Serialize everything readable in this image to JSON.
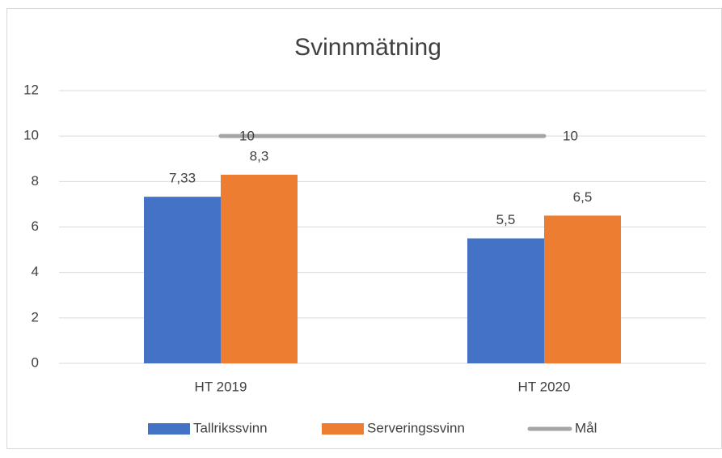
{
  "chart_data": {
    "type": "bar",
    "title": "Svinnmätning",
    "categories": [
      "HT 2019",
      "HT 2020"
    ],
    "series": [
      {
        "name": "Tallrikssvinn",
        "color": "#4472c4",
        "values": [
          7.33,
          5.5
        ],
        "value_labels": [
          "7,33",
          "5,5"
        ]
      },
      {
        "name": "Serveringssvinn",
        "color": "#ed7d31",
        "values": [
          8.3,
          6.5
        ],
        "value_labels": [
          "8,3",
          "6,5"
        ]
      },
      {
        "name": "Mål",
        "color": "#a5a5a5",
        "type": "line",
        "values": [
          10,
          10
        ]
      }
    ],
    "ylim": [
      0,
      12
    ],
    "yticks": [
      0,
      2,
      4,
      6,
      8,
      10,
      12
    ],
    "grid": true,
    "legend": "bottom"
  }
}
